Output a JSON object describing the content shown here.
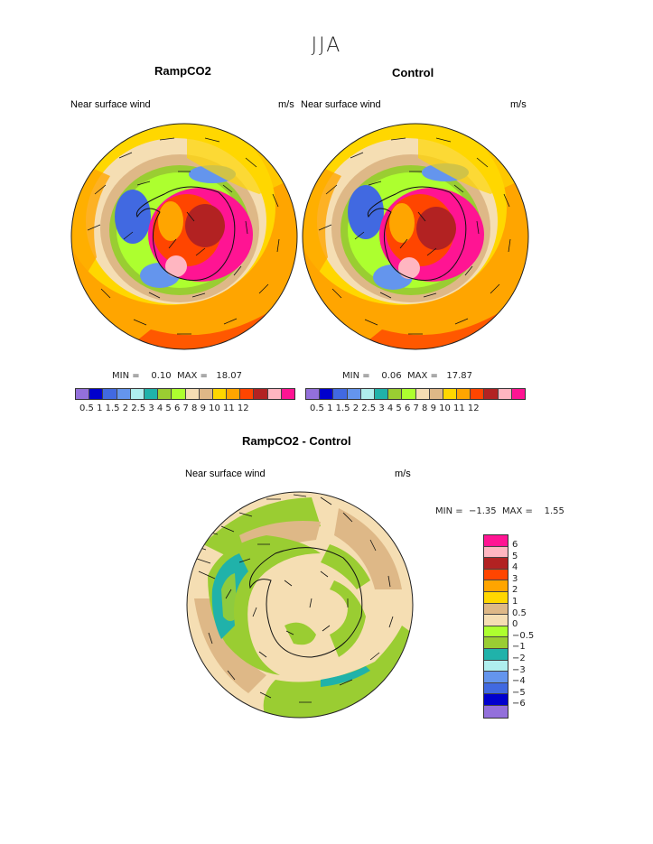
{
  "page": {
    "title": "JJA"
  },
  "panels": [
    {
      "title": "RampCO2",
      "variable": "Near surface wind",
      "units": "m/s",
      "min": "0.10",
      "max": "18.07"
    },
    {
      "title": "Control",
      "variable": "Near surface wind",
      "units": "m/s",
      "min": "0.06",
      "max": "17.87"
    }
  ],
  "diff_panel": {
    "title": "RampCO2 - Control",
    "variable": "Near surface wind",
    "units": "m/s",
    "min": "−1.35",
    "max": "1.55"
  },
  "legend_labels": {
    "min": "MIN =",
    "max": "MAX ="
  },
  "wind_colorbar": {
    "colors": [
      "#9370DB",
      "#0000CD",
      "#4169E1",
      "#6495ED",
      "#AFEEEE",
      "#20B2AA",
      "#9ACD32",
      "#ADFF2F",
      "#F5DEB3",
      "#DEB887",
      "#FFD700",
      "#FFA500",
      "#FF4500",
      "#B22222",
      "#FFB6C1",
      "#FF1493"
    ],
    "ticks": "0.5 1 1.5 2 2.5 3 4 5 6 7 8 9 10 11 12"
  },
  "diff_colorbar": {
    "colors": [
      "#FF1493",
      "#FFB6C1",
      "#B22222",
      "#FF4500",
      "#FFA500",
      "#FFD700",
      "#DEB887",
      "#F5DEB3",
      "#ADFF2F",
      "#9ACD32",
      "#20B2AA",
      "#AFEEEE",
      "#6495ED",
      "#4169E1",
      "#0000CD",
      "#9370DB"
    ],
    "labels": [
      "6",
      "5",
      "4",
      "3",
      "2",
      "1",
      "0.5",
      "0",
      "−0.5",
      "−1",
      "−2",
      "−3",
      "−4",
      "−5",
      "−6"
    ]
  }
}
